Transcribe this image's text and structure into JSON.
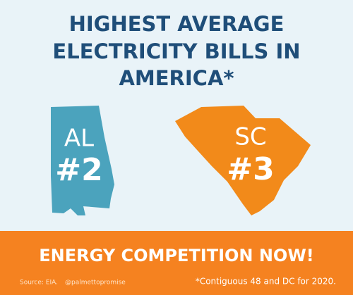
{
  "title_lines": [
    "HIGHEST AVERAGE",
    "ELECTRICITY BILLS IN",
    "AMERICA*"
  ],
  "states": [
    {
      "abbr": "AL",
      "rank": "#2"
    },
    {
      "abbr": "SC",
      "rank": "#3"
    }
  ],
  "footer": {
    "banner": "ENERGY COMPETITION NOW!",
    "source": "Source: EIA.",
    "handle": "@palmettopromise",
    "note": "*Contiguous 48 and DC for 2020."
  }
}
